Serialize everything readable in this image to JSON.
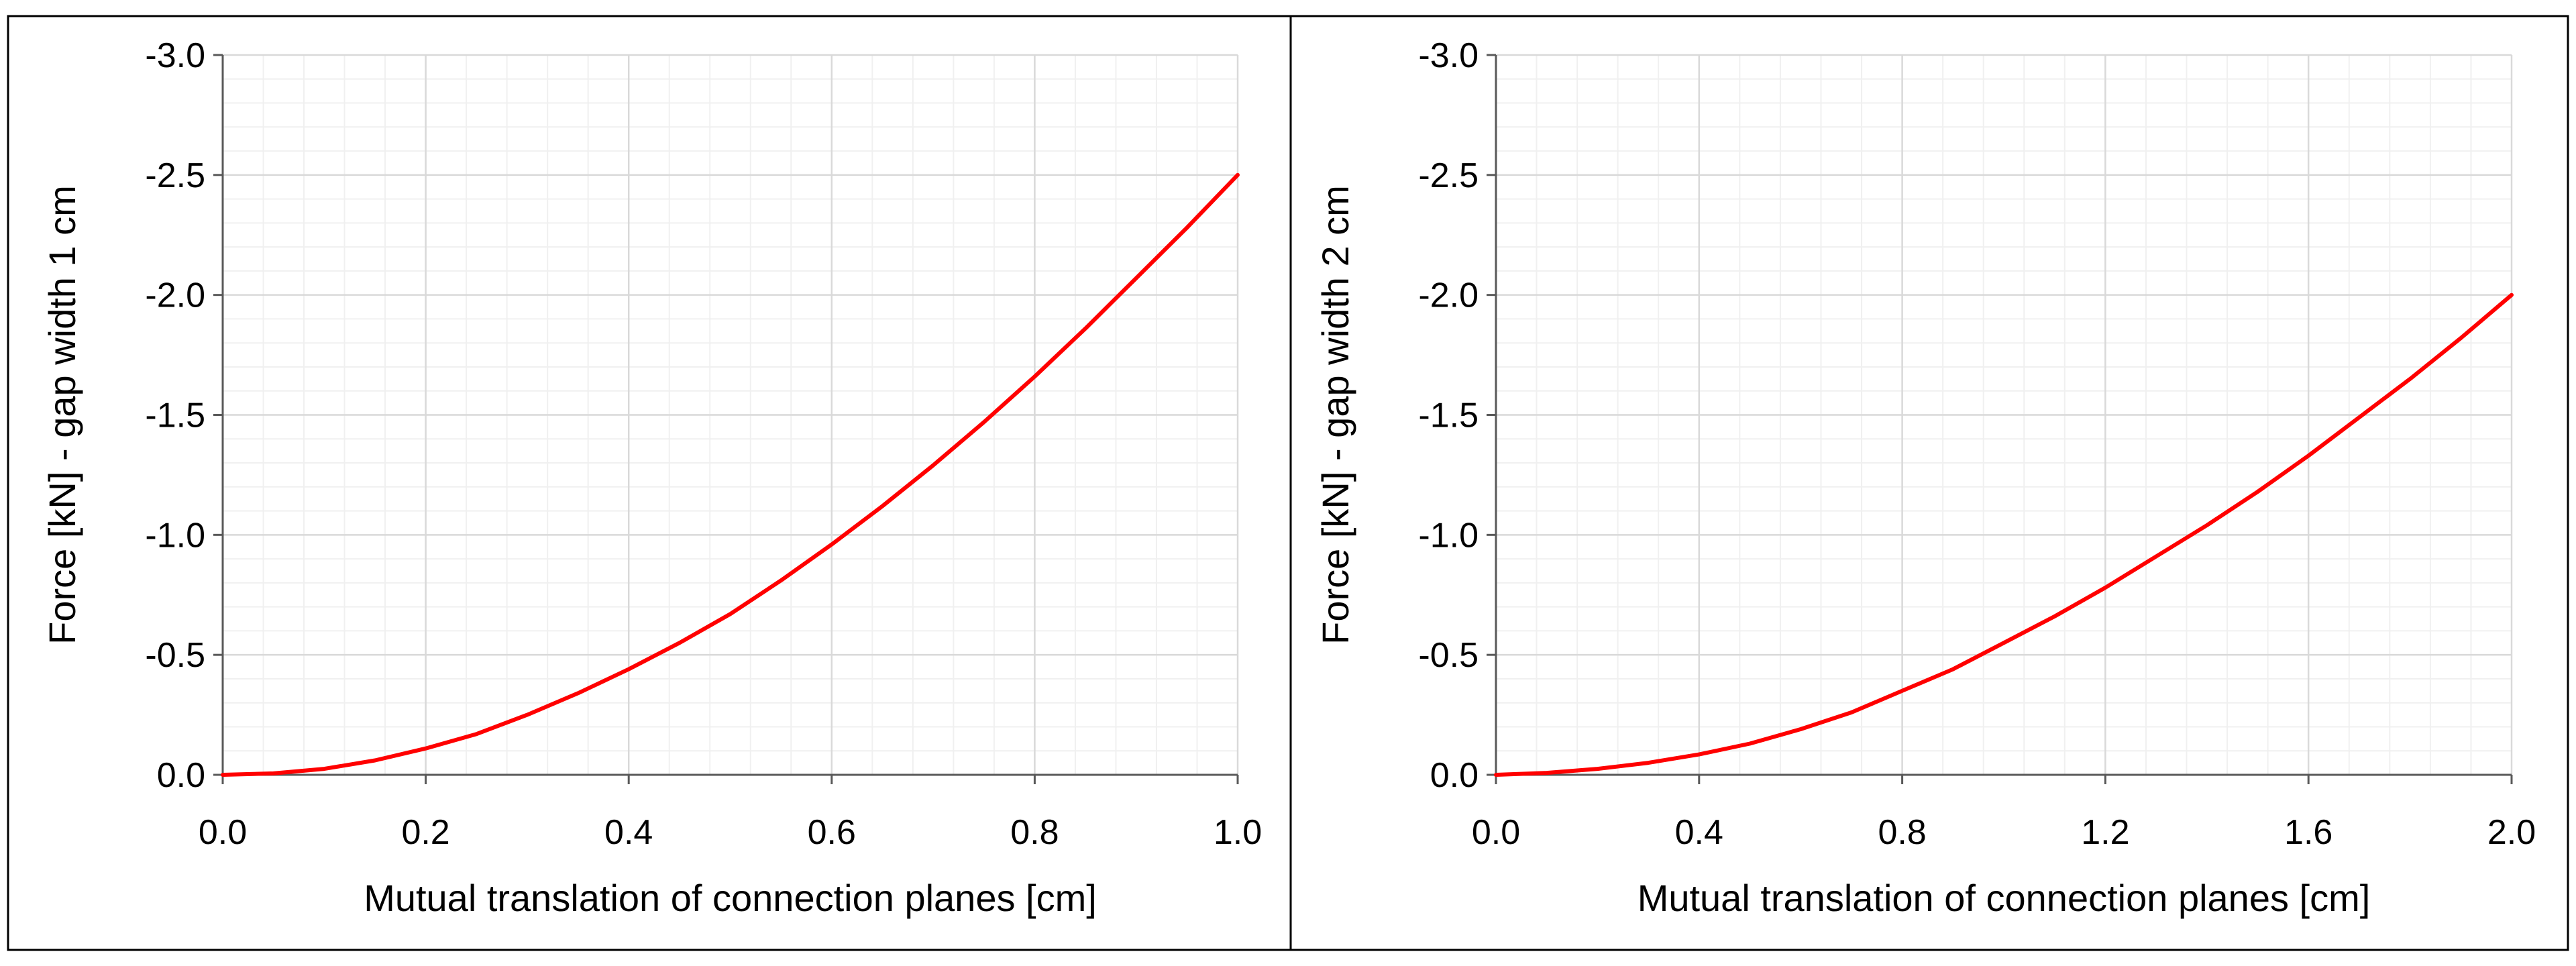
{
  "chart_data": [
    {
      "type": "line",
      "title": "",
      "xlabel": "Mutual translation of connection planes [cm]",
      "ylabel": "Force [kN] - gap width 1 cm",
      "xlim": [
        0.0,
        1.0
      ],
      "ylim": [
        0.0,
        -3.0
      ],
      "x_ticks": [
        "0.0",
        "0.2",
        "0.4",
        "0.6",
        "0.8",
        "1.0"
      ],
      "y_ticks": [
        "0.0",
        "-0.5",
        "-1.0",
        "-1.5",
        "-2.0",
        "-2.5",
        "-3.0"
      ],
      "grid": true,
      "series": [
        {
          "name": "gap width 1 cm",
          "color": "#ff0000",
          "x": [
            0.0,
            0.05,
            0.1,
            0.15,
            0.2,
            0.25,
            0.3,
            0.35,
            0.4,
            0.45,
            0.5,
            0.55,
            0.6,
            0.65,
            0.7,
            0.75,
            0.8,
            0.85,
            0.9,
            0.95,
            1.0
          ],
          "y": [
            0.0,
            -0.006,
            -0.025,
            -0.06,
            -0.11,
            -0.17,
            -0.25,
            -0.34,
            -0.44,
            -0.55,
            -0.67,
            -0.81,
            -0.96,
            -1.12,
            -1.29,
            -1.47,
            -1.66,
            -1.86,
            -2.07,
            -2.28,
            -2.5
          ]
        }
      ]
    },
    {
      "type": "line",
      "title": "",
      "xlabel": "Mutual translation of connection planes [cm]",
      "ylabel": "Force [kN] - gap width 2 cm",
      "xlim": [
        0.0,
        2.0
      ],
      "ylim": [
        0.0,
        -3.0
      ],
      "x_ticks": [
        "0.0",
        "0.4",
        "0.8",
        "1.2",
        "1.6",
        "2.0"
      ],
      "y_ticks": [
        "0.0",
        "-0.5",
        "-1.0",
        "-1.5",
        "-2.0",
        "-2.5",
        "-3.0"
      ],
      "grid": true,
      "series": [
        {
          "name": "gap width 2 cm",
          "color": "#ff0000",
          "x": [
            0.0,
            0.1,
            0.2,
            0.3,
            0.4,
            0.5,
            0.6,
            0.7,
            0.8,
            0.9,
            1.0,
            1.1,
            1.2,
            1.3,
            1.4,
            1.5,
            1.6,
            1.7,
            1.8,
            1.9,
            2.0
          ],
          "y": [
            0.0,
            -0.008,
            -0.025,
            -0.05,
            -0.085,
            -0.13,
            -0.19,
            -0.26,
            -0.35,
            -0.44,
            -0.55,
            -0.66,
            -0.78,
            -0.91,
            -1.04,
            -1.18,
            -1.33,
            -1.49,
            -1.65,
            -1.82,
            -2.0
          ]
        }
      ]
    }
  ]
}
